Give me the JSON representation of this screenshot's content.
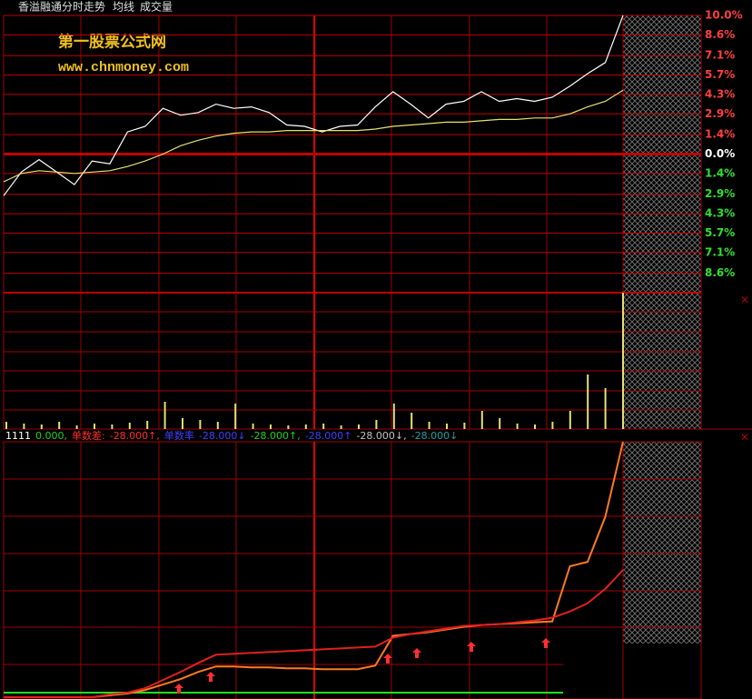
{
  "header": {
    "title": "香溢融通分时走势",
    "items": [
      "均线",
      "成交量"
    ]
  },
  "watermark": {
    "name": "第一股票公式网",
    "url": "www.chnmoney.com"
  },
  "chart_data": [
    {
      "type": "line",
      "ylim": [
        -10,
        10
      ],
      "yticks": [
        {
          "value": 10,
          "label": "10.0%"
        },
        {
          "value": 8.6,
          "label": "8.6%"
        },
        {
          "value": 7.1,
          "label": "7.1%"
        },
        {
          "value": 5.7,
          "label": "5.7%"
        },
        {
          "value": 4.3,
          "label": "4.3%"
        },
        {
          "value": 2.9,
          "label": "2.9%"
        },
        {
          "value": 1.4,
          "label": "1.4%"
        },
        {
          "value": 0,
          "label": "0.0%"
        },
        {
          "value": -1.4,
          "label": "1.4%"
        },
        {
          "value": -2.9,
          "label": "2.9%"
        },
        {
          "value": -4.3,
          "label": "4.3%"
        },
        {
          "value": -5.7,
          "label": "5.7%"
        },
        {
          "value": -7.1,
          "label": "7.1%"
        },
        {
          "value": -8.6,
          "label": "8.6%"
        }
      ],
      "grid": true,
      "series": [
        {
          "color": "#ffffff",
          "values": [
            -3.0,
            -1.3,
            -0.4,
            -1.3,
            -2.2,
            -0.5,
            -0.7,
            1.6,
            2.0,
            3.3,
            2.8,
            3.0,
            3.6,
            3.3,
            3.4,
            3.0,
            2.1,
            2.0,
            1.6,
            2.0,
            2.1,
            3.4,
            4.5,
            3.6,
            2.6,
            3.6,
            3.8,
            4.5,
            3.8,
            4.0,
            3.8,
            4.1,
            4.9,
            5.8,
            6.6,
            10.0
          ]
        },
        {
          "color": "#e8e070",
          "values": [
            -2.0,
            -1.4,
            -1.2,
            -1.3,
            -1.4,
            -1.3,
            -1.2,
            -0.9,
            -0.5,
            0,
            0.6,
            1.0,
            1.3,
            1.5,
            1.6,
            1.6,
            1.7,
            1.7,
            1.7,
            1.7,
            1.7,
            1.8,
            2.0,
            2.1,
            2.2,
            2.3,
            2.3,
            2.4,
            2.5,
            2.5,
            2.6,
            2.6,
            2.9,
            3.4,
            3.8,
            4.6
          ]
        }
      ]
    },
    {
      "type": "bar",
      "ylim": [
        0,
        150
      ],
      "color": "#e8e070",
      "values": [
        8,
        6,
        5,
        8,
        4,
        6,
        5,
        7,
        9,
        30,
        12,
        10,
        8,
        28,
        6,
        5,
        4,
        5,
        6,
        4,
        5,
        10,
        28,
        18,
        8,
        6,
        7,
        20,
        12,
        6,
        5,
        8,
        20,
        60,
        45,
        150
      ]
    },
    {
      "type": "line",
      "ylim": [
        0,
        283
      ],
      "legend": [
        {
          "text": "1111",
          "color": "#ffffff"
        },
        {
          "text": "0.000,",
          "color": "#20d020"
        },
        {
          "text": "单数差:",
          "color": "#ff3030"
        },
        {
          "text": "-28.000↑,",
          "color": "#ff3030"
        },
        {
          "text": "单数率",
          "color": "#4040ff"
        },
        {
          "text": "-28.000↓",
          "color": "#4040ff"
        },
        {
          "text": "-28.000↑,",
          "color": "#20d020"
        },
        {
          "text": "-28.000↑",
          "color": "#4040ff"
        },
        {
          "text": "-28.000↓,",
          "color": "#c0c0c0"
        },
        {
          "text": "-28.000↓",
          "color": "#20a0a0"
        }
      ],
      "series": [
        {
          "color": "#ff7a20",
          "values": [
            0,
            0,
            0,
            0,
            0,
            0,
            2,
            4,
            8,
            14,
            20,
            28,
            34,
            34,
            33,
            33,
            32,
            32,
            31,
            31,
            31,
            35,
            68,
            70,
            72,
            75,
            78,
            80,
            81,
            82,
            83,
            84,
            145,
            150,
            200,
            283
          ]
        },
        {
          "color": "#e02020",
          "values": [
            0,
            0,
            0,
            0,
            0,
            0,
            3,
            5,
            10,
            19,
            28,
            38,
            47,
            48,
            49,
            50,
            51,
            52,
            53,
            54,
            55,
            56,
            66,
            70,
            73,
            76,
            79,
            80,
            81,
            83,
            85,
            88,
            95,
            104,
            120,
            141
          ]
        }
      ]
    }
  ]
}
